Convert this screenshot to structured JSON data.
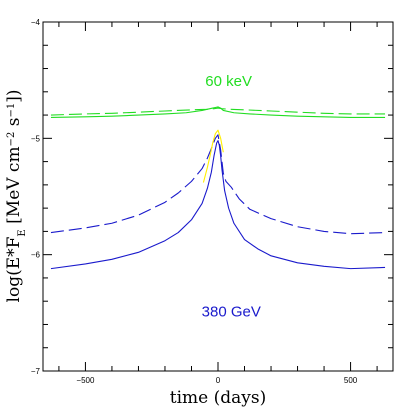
{
  "chart_data": {
    "type": "line",
    "xlabel": "time (days)",
    "ylabel_parts": {
      "a": "log(E*F",
      "sub": "E",
      "b": " [MeV cm",
      "sup1": "−2",
      "c": " s",
      "sup2": "−1",
      "d": "])"
    },
    "xlim": [
      -660,
      660
    ],
    "ylim": [
      -7,
      -4
    ],
    "x_ticks": [
      -500,
      0,
      500
    ],
    "x_tick_labels": [
      "−500",
      "0",
      "500"
    ],
    "y_ticks": [
      -7,
      -6,
      -5,
      -4
    ],
    "y_tick_labels": [
      "−7",
      "−6",
      "−5",
      "−4"
    ],
    "grid": false,
    "annotations": [
      {
        "text": "60 keV",
        "x": 40,
        "y": -4.55,
        "color": "#22dd22"
      },
      {
        "text": "380 GeV",
        "x": 50,
        "y": -6.53,
        "color": "#1a1acc"
      }
    ],
    "series": [
      {
        "style": "solid",
        "color": "#22dd22",
        "x": [
          -630,
          -500,
          -400,
          -300,
          -200,
          -120,
          -60,
          -20,
          -10,
          0,
          10,
          20,
          60,
          120,
          200,
          300,
          400,
          500,
          630
        ],
        "y": [
          -4.82,
          -4.815,
          -4.81,
          -4.8,
          -4.79,
          -4.78,
          -4.76,
          -4.74,
          -4.735,
          -4.73,
          -4.74,
          -4.76,
          -4.78,
          -4.79,
          -4.8,
          -4.81,
          -4.815,
          -4.82,
          -4.82
        ]
      },
      {
        "style": "dashed",
        "color": "#22dd22",
        "x": [
          -630,
          -500,
          -400,
          -300,
          -200,
          -100,
          -40,
          -15,
          0,
          15,
          40,
          100,
          200,
          300,
          400,
          500,
          630
        ],
        "y": [
          -4.8,
          -4.79,
          -4.785,
          -4.775,
          -4.765,
          -4.755,
          -4.75,
          -4.745,
          -4.74,
          -4.745,
          -4.75,
          -4.755,
          -4.765,
          -4.775,
          -4.785,
          -4.79,
          -4.79
        ]
      },
      {
        "style": "solid",
        "color": "#1a1acc",
        "x": [
          -630,
          -500,
          -400,
          -300,
          -200,
          -150,
          -100,
          -60,
          -40,
          -25,
          -15,
          -5,
          0,
          5,
          10,
          15,
          25,
          40,
          60,
          100,
          150,
          200,
          300,
          400,
          500,
          630
        ],
        "y": [
          -6.12,
          -6.08,
          -6.04,
          -5.98,
          -5.88,
          -5.81,
          -5.7,
          -5.56,
          -5.43,
          -5.29,
          -5.15,
          -5.04,
          -5.02,
          -5.06,
          -5.15,
          -5.27,
          -5.45,
          -5.6,
          -5.73,
          -5.87,
          -5.95,
          -6.01,
          -6.07,
          -6.1,
          -6.12,
          -6.11
        ]
      },
      {
        "style": "dashed",
        "color": "#1a1acc",
        "x": [
          -630,
          -500,
          -400,
          -300,
          -200,
          -150,
          -100,
          -60,
          -40,
          -20,
          -10,
          0,
          10,
          20,
          30,
          50,
          80,
          120,
          200,
          300,
          400,
          500,
          630
        ],
        "y": [
          -5.81,
          -5.77,
          -5.73,
          -5.66,
          -5.55,
          -5.47,
          -5.37,
          -5.26,
          -5.17,
          -5.06,
          -5.0,
          -4.97,
          -5.1,
          -5.3,
          -5.37,
          -5.42,
          -5.52,
          -5.61,
          -5.69,
          -5.76,
          -5.8,
          -5.82,
          -5.81
        ]
      },
      {
        "style": "solid",
        "color": "#ffee00",
        "x": [
          -55,
          -40,
          -30,
          -20,
          -10,
          0,
          10,
          20
        ],
        "y": [
          -5.38,
          -5.25,
          -5.15,
          -5.04,
          -4.96,
          -4.93,
          -5.0,
          -5.12
        ]
      }
    ]
  }
}
